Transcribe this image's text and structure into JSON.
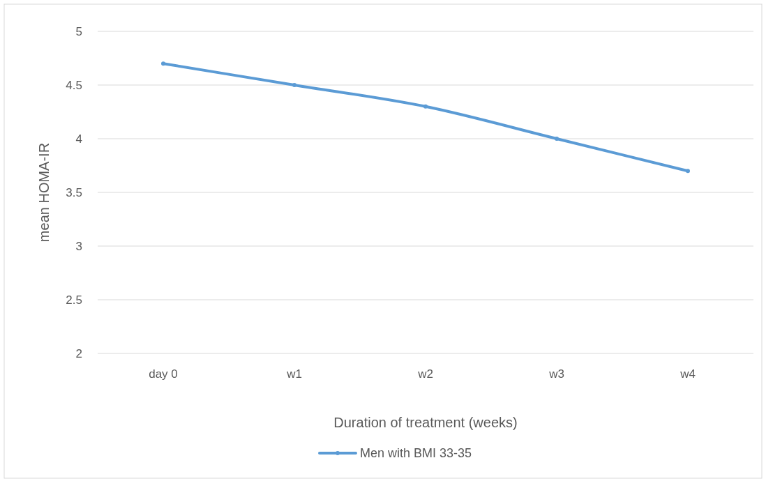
{
  "chart_data": {
    "type": "line",
    "xlabel": "Duration of treatment (weeks)",
    "ylabel": "mean HOMA-IR",
    "categories": [
      "day 0",
      "w1",
      "w2",
      "w3",
      "w4"
    ],
    "series": [
      {
        "name": "Men with BMI 33-35",
        "color": "#5b9bd5",
        "values": [
          4.7,
          4.5,
          4.3,
          4.0,
          3.7
        ]
      }
    ],
    "ylim": [
      2,
      5
    ],
    "yticks": [
      2,
      2.5,
      3,
      3.5,
      4,
      4.5,
      5
    ],
    "grid": "y",
    "legend": "bottom",
    "marker": "circle",
    "line_style": "solid"
  }
}
